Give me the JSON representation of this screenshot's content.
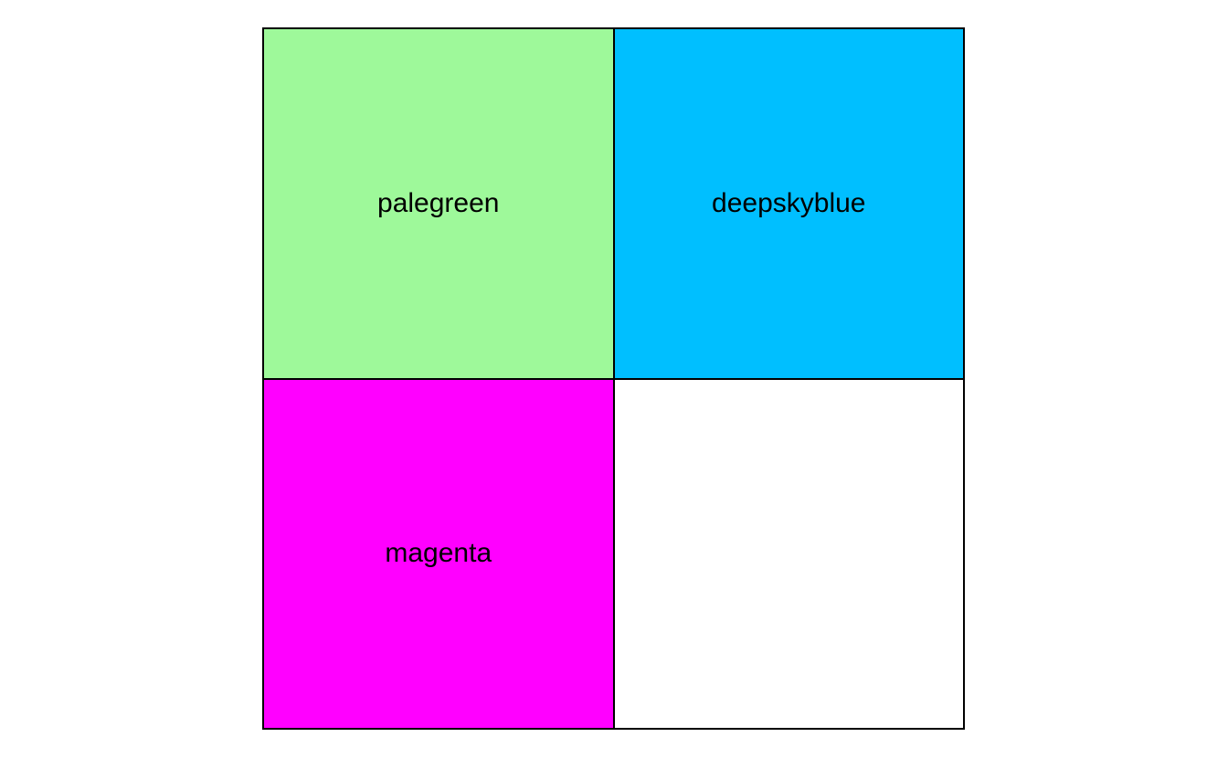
{
  "tiles": [
    {
      "label": "palegreen",
      "color": "#9ef99a"
    },
    {
      "label": "deepskyblue",
      "color": "#00bfff"
    },
    {
      "label": "magenta",
      "color": "#ff00ff"
    },
    {
      "label": "",
      "color": "#ffffff"
    }
  ]
}
